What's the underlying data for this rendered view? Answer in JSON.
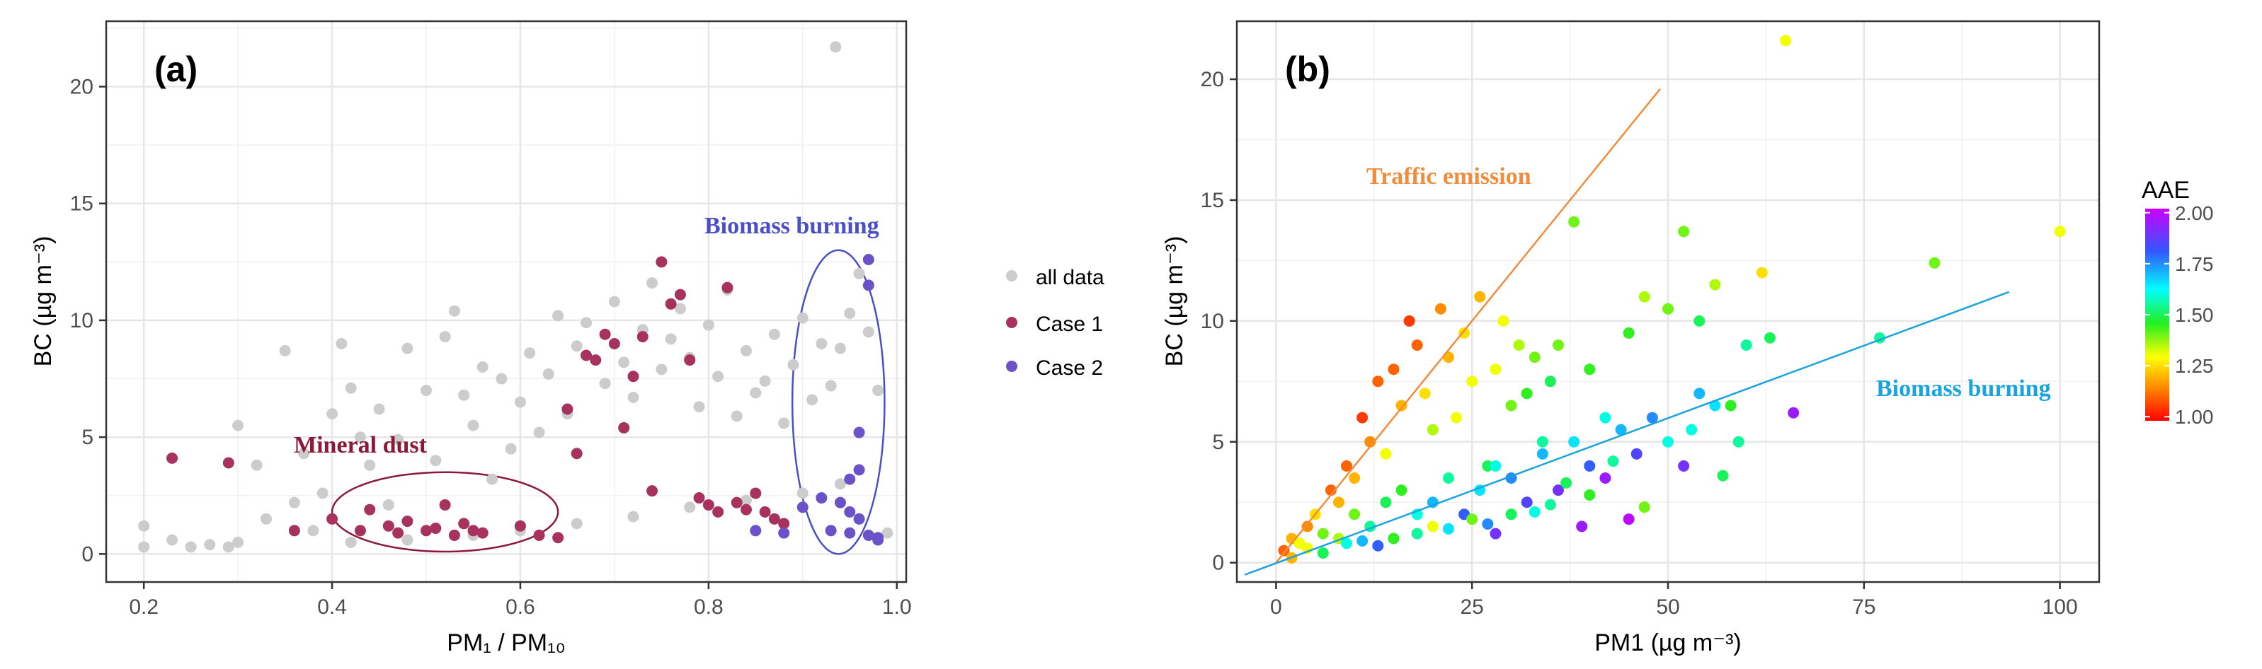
{
  "chart_data": [
    {
      "type": "scatter",
      "panel_label": "(a)",
      "xlabel": "PM₁ / PM₁₀",
      "ylabel": "BC (µg m⁻³)",
      "xlim": [
        0.16,
        1.01
      ],
      "ylim": [
        -1.2,
        22.8
      ],
      "xticks": [
        0.2,
        0.4,
        0.6,
        0.8,
        1.0
      ],
      "xtick_labels": [
        "0.2",
        "0.4",
        "0.6",
        "0.8",
        "1.0"
      ],
      "yticks": [
        0,
        5,
        10,
        15,
        20
      ],
      "ytick_labels": [
        "0",
        "5",
        "10",
        "15",
        "20"
      ],
      "grid": true,
      "legend": {
        "placement": "right",
        "entries": [
          "all data",
          "Case 1",
          "Case 2"
        ]
      },
      "series": [
        {
          "name": "all data",
          "color": "#cccccc",
          "points": [
            [
              0.2,
              1.2
            ],
            [
              0.2,
              0.3
            ],
            [
              0.23,
              0.6
            ],
            [
              0.25,
              0.3
            ],
            [
              0.27,
              0.4
            ],
            [
              0.29,
              0.3
            ],
            [
              0.3,
              5.5
            ],
            [
              0.3,
              0.5
            ],
            [
              0.32,
              3.8
            ],
            [
              0.33,
              1.5
            ],
            [
              0.35,
              8.7
            ],
            [
              0.36,
              2.2
            ],
            [
              0.37,
              4.3
            ],
            [
              0.38,
              1.0
            ],
            [
              0.39,
              2.6
            ],
            [
              0.4,
              6.0
            ],
            [
              0.41,
              9.0
            ],
            [
              0.42,
              7.1
            ],
            [
              0.43,
              5.0
            ],
            [
              0.44,
              3.8
            ],
            [
              0.45,
              6.2
            ],
            [
              0.46,
              2.1
            ],
            [
              0.47,
              4.9
            ],
            [
              0.48,
              8.8
            ],
            [
              0.5,
              7.0
            ],
            [
              0.51,
              4.0
            ],
            [
              0.52,
              9.3
            ],
            [
              0.53,
              10.4
            ],
            [
              0.54,
              6.8
            ],
            [
              0.55,
              5.5
            ],
            [
              0.56,
              8.0
            ],
            [
              0.57,
              3.2
            ],
            [
              0.58,
              7.5
            ],
            [
              0.59,
              4.5
            ],
            [
              0.6,
              6.5
            ],
            [
              0.61,
              8.6
            ],
            [
              0.62,
              5.2
            ],
            [
              0.63,
              7.7
            ],
            [
              0.64,
              10.2
            ],
            [
              0.65,
              6.0
            ],
            [
              0.66,
              8.9
            ],
            [
              0.67,
              9.9
            ],
            [
              0.69,
              7.3
            ],
            [
              0.7,
              10.8
            ],
            [
              0.71,
              8.2
            ],
            [
              0.72,
              6.7
            ],
            [
              0.73,
              9.6
            ],
            [
              0.74,
              11.6
            ],
            [
              0.75,
              7.9
            ],
            [
              0.76,
              9.2
            ],
            [
              0.77,
              10.5
            ],
            [
              0.78,
              8.4
            ],
            [
              0.79,
              6.3
            ],
            [
              0.8,
              9.8
            ],
            [
              0.81,
              7.6
            ],
            [
              0.82,
              11.3
            ],
            [
              0.83,
              5.9
            ],
            [
              0.84,
              8.7
            ],
            [
              0.85,
              6.9
            ],
            [
              0.86,
              7.4
            ],
            [
              0.87,
              9.4
            ],
            [
              0.88,
              5.6
            ],
            [
              0.89,
              8.1
            ],
            [
              0.9,
              10.1
            ],
            [
              0.91,
              6.6
            ],
            [
              0.92,
              9.0
            ],
            [
              0.93,
              7.2
            ],
            [
              0.94,
              8.8
            ],
            [
              0.95,
              10.3
            ],
            [
              0.96,
              12.0
            ],
            [
              0.97,
              9.5
            ],
            [
              0.98,
              7.0
            ],
            [
              0.935,
              21.7
            ],
            [
              0.42,
              0.5
            ],
            [
              0.48,
              0.6
            ],
            [
              0.55,
              0.8
            ],
            [
              0.6,
              1.0
            ],
            [
              0.66,
              1.3
            ],
            [
              0.72,
              1.6
            ],
            [
              0.78,
              2.0
            ],
            [
              0.84,
              2.3
            ],
            [
              0.9,
              2.6
            ],
            [
              0.94,
              3.0
            ],
            [
              0.99,
              0.9
            ]
          ]
        },
        {
          "name": "Case 1",
          "color": "#a8325e",
          "points": [
            [
              0.23,
              4.1
            ],
            [
              0.29,
              3.9
            ],
            [
              0.36,
              1.0
            ],
            [
              0.4,
              1.5
            ],
            [
              0.43,
              1.0
            ],
            [
              0.44,
              1.9
            ],
            [
              0.46,
              1.2
            ],
            [
              0.47,
              0.9
            ],
            [
              0.48,
              1.4
            ],
            [
              0.5,
              1.0
            ],
            [
              0.51,
              1.1
            ],
            [
              0.52,
              2.1
            ],
            [
              0.53,
              0.8
            ],
            [
              0.54,
              1.3
            ],
            [
              0.55,
              1.0
            ],
            [
              0.56,
              0.9
            ],
            [
              0.6,
              1.2
            ],
            [
              0.62,
              0.8
            ],
            [
              0.64,
              0.7
            ],
            [
              0.65,
              6.2
            ],
            [
              0.66,
              4.3
            ],
            [
              0.67,
              8.5
            ],
            [
              0.68,
              8.3
            ],
            [
              0.69,
              9.4
            ],
            [
              0.7,
              9.0
            ],
            [
              0.71,
              5.4
            ],
            [
              0.72,
              7.6
            ],
            [
              0.73,
              9.3
            ],
            [
              0.74,
              2.7
            ],
            [
              0.75,
              12.5
            ],
            [
              0.76,
              10.7
            ],
            [
              0.77,
              11.1
            ],
            [
              0.78,
              8.3
            ],
            [
              0.79,
              2.4
            ],
            [
              0.8,
              2.1
            ],
            [
              0.81,
              1.8
            ],
            [
              0.82,
              11.4
            ],
            [
              0.83,
              2.2
            ],
            [
              0.84,
              1.9
            ],
            [
              0.85,
              2.6
            ],
            [
              0.86,
              1.8
            ],
            [
              0.87,
              1.5
            ],
            [
              0.88,
              1.3
            ]
          ]
        },
        {
          "name": "Case 2",
          "color": "#6b52c9",
          "points": [
            [
              0.85,
              1.0
            ],
            [
              0.88,
              0.9
            ],
            [
              0.9,
              2.0
            ],
            [
              0.92,
              2.4
            ],
            [
              0.94,
              2.2
            ],
            [
              0.95,
              1.8
            ],
            [
              0.96,
              3.6
            ],
            [
              0.96,
              5.2
            ],
            [
              0.97,
              11.5
            ],
            [
              0.97,
              12.6
            ],
            [
              0.95,
              3.2
            ],
            [
              0.97,
              0.8
            ],
            [
              0.98,
              0.7
            ],
            [
              0.98,
              0.6
            ],
            [
              0.96,
              1.5
            ],
            [
              0.93,
              1.0
            ],
            [
              0.95,
              0.9
            ]
          ]
        }
      ],
      "annotations": [
        {
          "text": "Mineral dust",
          "color": "#8b1a3a"
        },
        {
          "text": "Biomass burning",
          "color": "#4a4fc6"
        }
      ],
      "ellipses": [
        {
          "name": "mineral-dust-region",
          "cx": 0.52,
          "cy": 1.8,
          "rx": 0.12,
          "ry": 1.7,
          "color": "#8b1a3a"
        },
        {
          "name": "biomass-burning-region",
          "cx": 0.938,
          "cy": 6.5,
          "rx": 0.049,
          "ry": 6.5,
          "color": "#4a4fc6"
        }
      ]
    },
    {
      "type": "scatter",
      "panel_label": "(b)",
      "xlabel": "PM1 (µg m⁻³)",
      "ylabel": "BC (µg m⁻³)",
      "xlim": [
        -5,
        105
      ],
      "ylim": [
        -0.8,
        22.4
      ],
      "xticks": [
        0,
        25,
        50,
        75,
        100
      ],
      "xtick_labels": [
        "0",
        "25",
        "50",
        "75",
        "100"
      ],
      "yticks": [
        0,
        5,
        10,
        15,
        20
      ],
      "ytick_labels": [
        "0",
        "5",
        "10",
        "15",
        "20"
      ],
      "grid": true,
      "colorbar": {
        "title": "AAE",
        "range": [
          0.98,
          2.02
        ],
        "ticks": [
          1.0,
          1.25,
          1.5,
          1.75,
          2.0
        ],
        "tick_labels": [
          "1.00",
          "1.25",
          "1.50",
          "1.75",
          "2.00"
        ]
      },
      "points_xy_aae": [
        [
          1,
          0.5,
          1.1
        ],
        [
          2,
          1.0,
          1.2
        ],
        [
          3,
          0.8,
          1.3
        ],
        [
          4,
          1.5,
          1.15
        ],
        [
          5,
          2.0,
          1.25
        ],
        [
          6,
          1.2,
          1.4
        ],
        [
          7,
          3.0,
          1.1
        ],
        [
          8,
          2.5,
          1.2
        ],
        [
          9,
          4.0,
          1.1
        ],
        [
          10,
          3.5,
          1.2
        ],
        [
          11,
          6.0,
          1.05
        ],
        [
          12,
          5.0,
          1.15
        ],
        [
          13,
          7.5,
          1.1
        ],
        [
          14,
          4.5,
          1.3
        ],
        [
          15,
          8.0,
          1.1
        ],
        [
          16,
          6.5,
          1.2
        ],
        [
          17,
          10.0,
          1.05
        ],
        [
          18,
          9.0,
          1.1
        ],
        [
          19,
          7.0,
          1.25
        ],
        [
          20,
          5.5,
          1.35
        ],
        [
          21,
          10.5,
          1.15
        ],
        [
          22,
          8.5,
          1.2
        ],
        [
          23,
          6.0,
          1.3
        ],
        [
          24,
          9.5,
          1.25
        ],
        [
          25,
          7.5,
          1.3
        ],
        [
          26,
          11.0,
          1.2
        ],
        [
          27,
          4.0,
          1.5
        ],
        [
          28,
          8.0,
          1.3
        ],
        [
          29,
          10.0,
          1.3
        ],
        [
          30,
          6.5,
          1.4
        ],
        [
          31,
          9.0,
          1.35
        ],
        [
          32,
          7.0,
          1.45
        ],
        [
          33,
          8.5,
          1.4
        ],
        [
          34,
          5.0,
          1.55
        ],
        [
          35,
          7.5,
          1.5
        ],
        [
          36,
          9.0,
          1.4
        ],
        [
          38,
          14.1,
          1.4
        ],
        [
          40,
          8.0,
          1.45
        ],
        [
          42,
          6.0,
          1.6
        ],
        [
          45,
          9.5,
          1.45
        ],
        [
          47,
          11.0,
          1.35
        ],
        [
          50,
          10.5,
          1.4
        ],
        [
          52,
          13.7,
          1.4
        ],
        [
          54,
          10.0,
          1.5
        ],
        [
          56,
          11.5,
          1.35
        ],
        [
          58,
          6.5,
          1.45
        ],
        [
          60,
          9.0,
          1.55
        ],
        [
          62,
          12.0,
          1.25
        ],
        [
          63,
          9.3,
          1.5
        ],
        [
          65,
          21.6,
          1.3
        ],
        [
          66,
          6.2,
          1.95
        ],
        [
          77,
          9.3,
          1.55
        ],
        [
          84,
          12.4,
          1.4
        ],
        [
          100,
          13.7,
          1.3
        ],
        [
          8,
          1.0,
          1.35
        ],
        [
          10,
          2.0,
          1.4
        ],
        [
          12,
          1.5,
          1.55
        ],
        [
          14,
          2.5,
          1.5
        ],
        [
          16,
          3.0,
          1.45
        ],
        [
          18,
          2.0,
          1.6
        ],
        [
          20,
          2.5,
          1.7
        ],
        [
          22,
          3.5,
          1.55
        ],
        [
          24,
          2.0,
          1.8
        ],
        [
          26,
          3.0,
          1.65
        ],
        [
          28,
          4.0,
          1.6
        ],
        [
          30,
          3.5,
          1.75
        ],
        [
          32,
          2.5,
          1.85
        ],
        [
          34,
          4.5,
          1.7
        ],
        [
          36,
          3.0,
          1.9
        ],
        [
          38,
          5.0,
          1.65
        ],
        [
          40,
          4.0,
          1.8
        ],
        [
          42,
          3.5,
          1.95
        ],
        [
          44,
          5.5,
          1.7
        ],
        [
          46,
          4.5,
          1.85
        ],
        [
          48,
          6.0,
          1.75
        ],
        [
          50,
          5.0,
          1.6
        ],
        [
          52,
          4.0,
          1.9
        ],
        [
          54,
          7.0,
          1.7
        ],
        [
          56,
          6.5,
          1.65
        ],
        [
          20,
          1.5,
          1.3
        ],
        [
          25,
          1.8,
          1.4
        ],
        [
          30,
          2.0,
          1.5
        ],
        [
          35,
          2.4,
          1.55
        ],
        [
          40,
          2.8,
          1.45
        ],
        [
          15,
          1.0,
          1.45
        ],
        [
          18,
          1.2,
          1.55
        ],
        [
          22,
          1.4,
          1.65
        ],
        [
          27,
          1.6,
          1.75
        ],
        [
          33,
          2.1,
          1.6
        ],
        [
          37,
          3.3,
          1.5
        ],
        [
          43,
          4.2,
          1.55
        ],
        [
          47,
          2.3,
          1.4
        ],
        [
          53,
          5.5,
          1.6
        ],
        [
          57,
          3.6,
          1.5
        ],
        [
          59,
          5.0,
          1.55
        ],
        [
          39,
          1.5,
          1.95
        ],
        [
          45,
          1.8,
          2.0
        ],
        [
          28,
          1.2,
          1.9
        ],
        [
          2,
          0.2,
          1.2
        ],
        [
          4,
          0.6,
          1.3
        ],
        [
          6,
          0.4,
          1.5
        ],
        [
          9,
          0.8,
          1.6
        ],
        [
          11,
          0.9,
          1.7
        ],
        [
          13,
          0.7,
          1.8
        ]
      ],
      "lines": [
        {
          "name": "Traffic emission",
          "color": "#f08c3c",
          "x": [
            0,
            49
          ],
          "y": [
            0,
            19.6
          ]
        },
        {
          "name": "Biomass burning",
          "color": "#1aa3de",
          "x": [
            -4,
            93.5
          ],
          "y": [
            -0.5,
            11.2
          ]
        }
      ],
      "annotations": [
        {
          "text": "Traffic emission",
          "color": "#f08c3c"
        },
        {
          "text": "Biomass burning",
          "color": "#1aa3de"
        }
      ]
    }
  ]
}
